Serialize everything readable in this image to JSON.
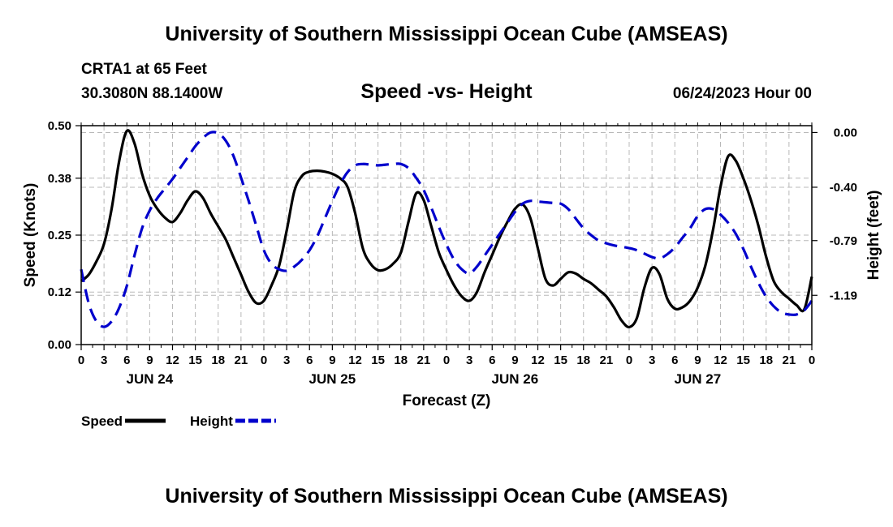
{
  "header": {
    "title": "University of Southern Mississippi Ocean Cube (AMSEAS)",
    "station": "CRTA1 at 65 Feet",
    "coordinates": "30.3080N  88.1400W",
    "datetime": "06/24/2023 Hour 00"
  },
  "footer": {
    "title": "University of Southern Mississippi Ocean Cube (AMSEAS)"
  },
  "chart_data": {
    "type": "line",
    "title": "Speed -vs- Height",
    "xlabel": "Forecast (Z)",
    "ylabel": "Speed (Knots)",
    "y2label": "Height (feet)",
    "x_unit": "hours since 06/24/2023 00Z",
    "xlim": [
      0,
      96
    ],
    "ylim": [
      0,
      0.5
    ],
    "y2lim": [
      -1.55,
      0.05
    ],
    "yticks": [
      0.0,
      0.12,
      0.25,
      0.38,
      0.5
    ],
    "ytick_labels": [
      "0.00",
      "0.12",
      "0.25",
      "0.38",
      "0.50"
    ],
    "y2ticks": [
      0.0,
      -0.4,
      -0.79,
      -1.19
    ],
    "y2tick_labels": [
      "0.00",
      "-0.40",
      "-0.79",
      "-1.19"
    ],
    "xtick_labels": [
      "0",
      "3",
      "6",
      "9",
      "12",
      "15",
      "18",
      "21",
      "0",
      "3",
      "6",
      "9",
      "12",
      "15",
      "18",
      "21",
      "0",
      "3",
      "6",
      "9",
      "12",
      "15",
      "18",
      "21",
      "0",
      "3",
      "6",
      "9",
      "12",
      "15",
      "18",
      "21",
      "0"
    ],
    "day_labels": [
      {
        "x": 9,
        "label": "JUN 24"
      },
      {
        "x": 33,
        "label": "JUN 25"
      },
      {
        "x": 57,
        "label": "JUN 26"
      },
      {
        "x": 81,
        "label": "JUN 27"
      }
    ],
    "grid": true,
    "legend_position": "bottom-left",
    "series": [
      {
        "name": "Speed",
        "axis": "left",
        "color": "#000000",
        "dash": "solid",
        "x": [
          0,
          1,
          2,
          3,
          4,
          5,
          6,
          7,
          8,
          9,
          10,
          11,
          12,
          13,
          14,
          15,
          16,
          17,
          18,
          19,
          20,
          21,
          22,
          23,
          24,
          25,
          26,
          27,
          28,
          29,
          30,
          31,
          32,
          33,
          34,
          35,
          36,
          37,
          38,
          39,
          40,
          41,
          42,
          43,
          44,
          45,
          46,
          47,
          48,
          49,
          50,
          51,
          52,
          53,
          54,
          55,
          56,
          57,
          58,
          59,
          60,
          61,
          62,
          63,
          64,
          65,
          66,
          67,
          68,
          69,
          70,
          71,
          72,
          73,
          74,
          75,
          76,
          77,
          78,
          79,
          80,
          81,
          82,
          83,
          84,
          85,
          86,
          87,
          88,
          89,
          90,
          91,
          92,
          93,
          94,
          95,
          96
        ],
        "values": [
          0.145,
          0.16,
          0.19,
          0.23,
          0.31,
          0.42,
          0.488,
          0.46,
          0.39,
          0.34,
          0.31,
          0.29,
          0.28,
          0.3,
          0.33,
          0.35,
          0.335,
          0.3,
          0.27,
          0.24,
          0.2,
          0.16,
          0.12,
          0.095,
          0.1,
          0.135,
          0.18,
          0.26,
          0.35,
          0.385,
          0.395,
          0.397,
          0.395,
          0.39,
          0.38,
          0.36,
          0.3,
          0.22,
          0.185,
          0.17,
          0.172,
          0.185,
          0.21,
          0.28,
          0.345,
          0.33,
          0.27,
          0.21,
          0.17,
          0.135,
          0.11,
          0.1,
          0.12,
          0.165,
          0.205,
          0.245,
          0.28,
          0.31,
          0.32,
          0.29,
          0.22,
          0.15,
          0.135,
          0.15,
          0.165,
          0.162,
          0.15,
          0.14,
          0.125,
          0.11,
          0.085,
          0.055,
          0.04,
          0.06,
          0.13,
          0.175,
          0.16,
          0.105,
          0.082,
          0.085,
          0.1,
          0.13,
          0.18,
          0.26,
          0.36,
          0.43,
          0.42,
          0.38,
          0.33,
          0.27,
          0.2,
          0.145,
          0.12,
          0.105,
          0.09,
          0.08,
          0.155
        ]
      },
      {
        "name": "Height",
        "axis": "right",
        "color": "#0000cc",
        "dash": "dashed",
        "x": [
          0,
          1,
          2,
          3,
          4,
          5,
          6,
          7,
          8,
          9,
          10,
          11,
          12,
          13,
          14,
          15,
          16,
          17,
          18,
          19,
          20,
          21,
          22,
          23,
          24,
          25,
          26,
          27,
          28,
          29,
          30,
          31,
          32,
          33,
          34,
          35,
          36,
          37,
          38,
          39,
          40,
          41,
          42,
          43,
          44,
          45,
          46,
          47,
          48,
          49,
          50,
          51,
          52,
          53,
          54,
          55,
          56,
          57,
          58,
          59,
          60,
          61,
          62,
          63,
          64,
          65,
          66,
          67,
          68,
          69,
          70,
          71,
          72,
          73,
          74,
          75,
          76,
          77,
          78,
          79,
          80,
          81,
          82,
          83,
          84,
          85,
          86,
          87,
          88,
          89,
          90,
          91,
          92,
          93,
          94,
          95,
          96
        ],
        "values": [
          -1.0,
          -1.25,
          -1.38,
          -1.42,
          -1.38,
          -1.28,
          -1.12,
          -0.9,
          -0.7,
          -0.57,
          -0.48,
          -0.41,
          -0.34,
          -0.26,
          -0.18,
          -0.1,
          -0.04,
          0.0,
          -0.005,
          -0.06,
          -0.17,
          -0.33,
          -0.5,
          -0.68,
          -0.86,
          -0.96,
          -1.0,
          -1.01,
          -0.98,
          -0.93,
          -0.86,
          -0.76,
          -0.63,
          -0.5,
          -0.38,
          -0.29,
          -0.24,
          -0.23,
          -0.235,
          -0.24,
          -0.235,
          -0.23,
          -0.23,
          -0.26,
          -0.33,
          -0.42,
          -0.55,
          -0.69,
          -0.82,
          -0.93,
          -1.0,
          -1.03,
          -0.98,
          -0.9,
          -0.82,
          -0.74,
          -0.66,
          -0.58,
          -0.52,
          -0.5,
          -0.505,
          -0.51,
          -0.515,
          -0.52,
          -0.56,
          -0.63,
          -0.7,
          -0.75,
          -0.79,
          -0.81,
          -0.825,
          -0.835,
          -0.845,
          -0.86,
          -0.885,
          -0.91,
          -0.92,
          -0.89,
          -0.84,
          -0.77,
          -0.7,
          -0.61,
          -0.56,
          -0.56,
          -0.6,
          -0.66,
          -0.74,
          -0.85,
          -0.98,
          -1.1,
          -1.2,
          -1.27,
          -1.315,
          -1.33,
          -1.33,
          -1.3,
          -1.23
        ]
      }
    ]
  }
}
